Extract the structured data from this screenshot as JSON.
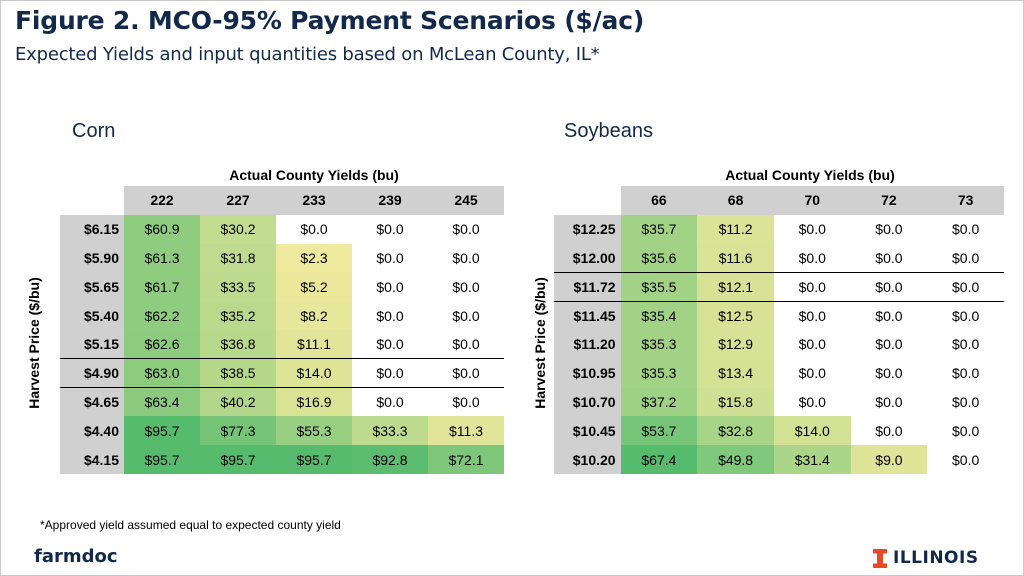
{
  "header": {
    "title": "Figure 2. MCO-95% Payment Scenarios ($/ac)",
    "subtitle": "Expected Yields and input quantities based on McLean County, IL*"
  },
  "colors": {
    "title": "#13294b",
    "header_fill": "#d0d0d0",
    "scale_low": "#f4eb9f",
    "scale_high": "#57bb6e",
    "illinois_orange": "#e84a27"
  },
  "footnote": "*Approved yield assumed equal to expected county yield",
  "branding": {
    "left": "farmdoc",
    "right": "ILLINOIS",
    "right_icon": "block-i-icon"
  },
  "chart_data": [
    {
      "type": "heatmap",
      "title": "Corn",
      "xlabel": "Actual County Yields (bu)",
      "ylabel": "Harvest Price ($/bu)",
      "x": [
        "222",
        "227",
        "233",
        "239",
        "245"
      ],
      "y": [
        "$6.15",
        "$5.90",
        "$5.65",
        "$5.40",
        "$5.15",
        "$4.90",
        "$4.65",
        "$4.40",
        "$4.15"
      ],
      "values": [
        [
          60.9,
          30.2,
          0.0,
          0.0,
          0.0
        ],
        [
          61.3,
          31.8,
          2.3,
          0.0,
          0.0
        ],
        [
          61.7,
          33.5,
          5.2,
          0.0,
          0.0
        ],
        [
          62.2,
          35.2,
          8.2,
          0.0,
          0.0
        ],
        [
          62.6,
          36.8,
          11.1,
          0.0,
          0.0
        ],
        [
          63.0,
          38.5,
          14.0,
          0.0,
          0.0
        ],
        [
          63.4,
          40.2,
          16.9,
          0.0,
          0.0
        ],
        [
          95.7,
          77.3,
          55.3,
          33.3,
          11.3
        ],
        [
          95.7,
          95.7,
          95.7,
          92.8,
          72.1
        ]
      ],
      "labels": [
        [
          "$60.9",
          "$30.2",
          "$0.0",
          "$0.0",
          "$0.0"
        ],
        [
          "$61.3",
          "$31.8",
          "$2.3",
          "$0.0",
          "$0.0"
        ],
        [
          "$61.7",
          "$33.5",
          "$5.2",
          "$0.0",
          "$0.0"
        ],
        [
          "$62.2",
          "$35.2",
          "$8.2",
          "$0.0",
          "$0.0"
        ],
        [
          "$62.6",
          "$36.8",
          "$11.1",
          "$0.0",
          "$0.0"
        ],
        [
          "$63.0",
          "$38.5",
          "$14.0",
          "$0.0",
          "$0.0"
        ],
        [
          "$63.4",
          "$40.2",
          "$16.9",
          "$0.0",
          "$0.0"
        ],
        [
          "$95.7",
          "$77.3",
          "$55.3",
          "$33.3",
          "$11.3"
        ],
        [
          "$95.7",
          "$95.7",
          "$95.7",
          "$92.8",
          "$72.1"
        ]
      ],
      "rules_after_rows": [
        4,
        5
      ]
    },
    {
      "type": "heatmap",
      "title": "Soybeans",
      "xlabel": "Actual County Yields (bu)",
      "ylabel": "Harvest Price ($/bu)",
      "x": [
        "66",
        "68",
        "70",
        "72",
        "73"
      ],
      "y": [
        "$12.25",
        "$12.00",
        "$11.72",
        "$11.45",
        "$11.20",
        "$10.95",
        "$10.70",
        "$10.45",
        "$10.20"
      ],
      "values": [
        [
          35.7,
          11.2,
          0.0,
          0.0,
          0.0
        ],
        [
          35.6,
          11.6,
          0.0,
          0.0,
          0.0
        ],
        [
          35.5,
          12.1,
          0.0,
          0.0,
          0.0
        ],
        [
          35.4,
          12.5,
          0.0,
          0.0,
          0.0
        ],
        [
          35.3,
          12.9,
          0.0,
          0.0,
          0.0
        ],
        [
          35.3,
          13.4,
          0.0,
          0.0,
          0.0
        ],
        [
          37.2,
          15.8,
          0.0,
          0.0,
          0.0
        ],
        [
          53.7,
          32.8,
          14.0,
          0.0,
          0.0
        ],
        [
          67.4,
          49.8,
          31.4,
          9.0,
          0.0
        ]
      ],
      "labels": [
        [
          "$35.7",
          "$11.2",
          "$0.0",
          "$0.0",
          "$0.0"
        ],
        [
          "$35.6",
          "$11.6",
          "$0.0",
          "$0.0",
          "$0.0"
        ],
        [
          "$35.5",
          "$12.1",
          "$0.0",
          "$0.0",
          "$0.0"
        ],
        [
          "$35.4",
          "$12.5",
          "$0.0",
          "$0.0",
          "$0.0"
        ],
        [
          "$35.3",
          "$12.9",
          "$0.0",
          "$0.0",
          "$0.0"
        ],
        [
          "$35.3",
          "$13.4",
          "$0.0",
          "$0.0",
          "$0.0"
        ],
        [
          "$37.2",
          "$15.8",
          "$0.0",
          "$0.0",
          "$0.0"
        ],
        [
          "$53.7",
          "$32.8",
          "$14.0",
          "$0.0",
          "$0.0"
        ],
        [
          "$67.4",
          "$49.8",
          "$31.4",
          "$9.0",
          "$0.0"
        ]
      ],
      "rules_after_rows": [
        1,
        2
      ]
    }
  ]
}
